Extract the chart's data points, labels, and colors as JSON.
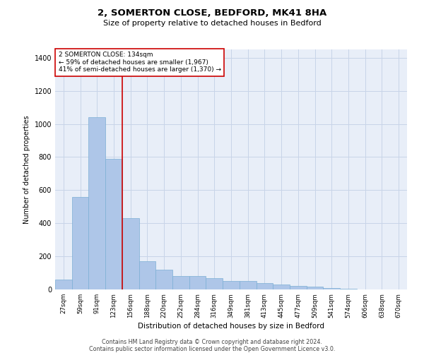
{
  "title1": "2, SOMERTON CLOSE, BEDFORD, MK41 8HA",
  "title2": "Size of property relative to detached houses in Bedford",
  "xlabel": "Distribution of detached houses by size in Bedford",
  "ylabel": "Number of detached properties",
  "footer1": "Contains HM Land Registry data © Crown copyright and database right 2024.",
  "footer2": "Contains public sector information licensed under the Open Government Licence v3.0.",
  "annotation_line1": "2 SOMERTON CLOSE: 134sqm",
  "annotation_line2": "← 59% of detached houses are smaller (1,967)",
  "annotation_line3": "41% of semi-detached houses are larger (1,370) →",
  "bar_color": "#aec6e8",
  "bar_edge_color": "#7bafd4",
  "grid_color": "#c8d4e8",
  "bg_color": "#e8eef8",
  "red_line_color": "#cc0000",
  "annotation_box_color": "#cc0000",
  "categories": [
    "27sqm",
    "59sqm",
    "91sqm",
    "123sqm",
    "156sqm",
    "188sqm",
    "220sqm",
    "252sqm",
    "284sqm",
    "316sqm",
    "349sqm",
    "381sqm",
    "413sqm",
    "445sqm",
    "477sqm",
    "509sqm",
    "541sqm",
    "574sqm",
    "606sqm",
    "638sqm",
    "670sqm"
  ],
  "values": [
    60,
    560,
    1040,
    790,
    430,
    170,
    120,
    80,
    80,
    70,
    50,
    50,
    40,
    30,
    20,
    15,
    10,
    5,
    0,
    0,
    0
  ],
  "red_line_x": 3.5,
  "ylim": [
    0,
    1450
  ],
  "yticks": [
    0,
    200,
    400,
    600,
    800,
    1000,
    1200,
    1400
  ]
}
